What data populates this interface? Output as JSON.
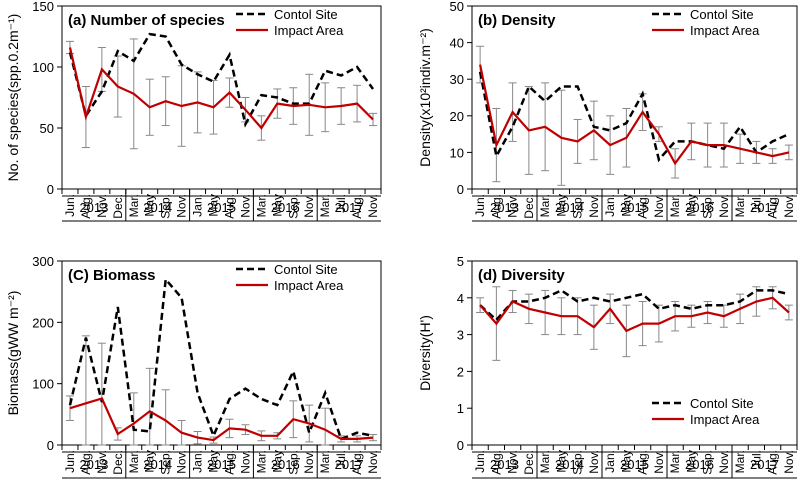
{
  "x_categories": [
    "Jun.",
    "Aug.",
    "Nov.",
    "Dec.",
    "Mar.",
    "May",
    "Sep.",
    "Nov.",
    "Jan.",
    "May",
    "Aug.",
    "Nov.",
    "Mar.",
    "May",
    "Sep.",
    "Nov.",
    "Mar.",
    "Jul.",
    "Aug.",
    "Nov."
  ],
  "x_years": [
    {
      "label": "2013",
      "start": 0,
      "end": 3
    },
    {
      "label": "2014",
      "start": 4,
      "end": 7
    },
    {
      "label": "2015",
      "start": 8,
      "end": 11
    },
    {
      "label": "2016",
      "start": 12,
      "end": 15
    },
    {
      "label": "2017",
      "start": 16,
      "end": 19
    }
  ],
  "colors": {
    "control": "#000000",
    "impact": "#c00000",
    "errorbar": "#888888"
  },
  "chart_data": [
    {
      "id": "species",
      "type": "line",
      "title": "(a)  Number of species",
      "ylabel": "No. of species(spp.0.2m⁻¹)",
      "ylim": [
        0,
        150
      ],
      "yticks": [
        0,
        50,
        100,
        150
      ],
      "legend": [
        "Contol Site",
        "Impact Area"
      ],
      "legend_position": "top-right",
      "series": [
        {
          "name": "Contol Site",
          "style": "dashed",
          "values": [
            112,
            60,
            80,
            113,
            105,
            127,
            125,
            102,
            94,
            88,
            110,
            53,
            77,
            75,
            70,
            70,
            97,
            93,
            100,
            82
          ]
        },
        {
          "name": "Impact Area",
          "style": "solid",
          "values": [
            116,
            59,
            98,
            84,
            78,
            67,
            72,
            68,
            71,
            67,
            79,
            65,
            50,
            70,
            68,
            69,
            67,
            68,
            70,
            57
          ],
          "errors": [
            5,
            25,
            18,
            25,
            45,
            23,
            20,
            33,
            25,
            22,
            12,
            10,
            10,
            12,
            15,
            25,
            20,
            15,
            15,
            5
          ]
        }
      ]
    },
    {
      "id": "density",
      "type": "line",
      "title": "(b)  Density",
      "ylabel": "Density(x10²indiv.m⁻²)",
      "ylim": [
        0,
        50
      ],
      "yticks": [
        0,
        10,
        20,
        30,
        40,
        50
      ],
      "legend": [
        "Contol Site",
        "Impact Area"
      ],
      "legend_position": "top-right",
      "series": [
        {
          "name": "Contol Site",
          "style": "dashed",
          "values": [
            32,
            9,
            17,
            28,
            24,
            28,
            28,
            17,
            16,
            18,
            26,
            8,
            13,
            13,
            12,
            11,
            17,
            10,
            13,
            15
          ]
        },
        {
          "name": "Impact Area",
          "style": "solid",
          "values": [
            34,
            12,
            21,
            16,
            17,
            14,
            13,
            16,
            12,
            14,
            21,
            15,
            7,
            13,
            12,
            12,
            11,
            10,
            9,
            10
          ],
          "errors": [
            5,
            10,
            8,
            12,
            12,
            13,
            6,
            8,
            8,
            8,
            5,
            2,
            4,
            5,
            6,
            6,
            4,
            3,
            2,
            2
          ]
        }
      ]
    },
    {
      "id": "biomass",
      "type": "line",
      "title": "(C)  Biomass",
      "ylabel": "Biomass(gWW m⁻²)",
      "ylim": [
        0,
        300
      ],
      "yticks": [
        0,
        100,
        200,
        300
      ],
      "legend": [
        "Contol Site",
        "Impact Area"
      ],
      "legend_position": "top-right",
      "series": [
        {
          "name": "Contol Site",
          "style": "dashed",
          "values": [
            65,
            175,
            70,
            225,
            25,
            22,
            270,
            240,
            85,
            15,
            75,
            92,
            75,
            65,
            120,
            20,
            85,
            10,
            20,
            15
          ]
        },
        {
          "name": "Impact Area",
          "style": "solid",
          "values": [
            60,
            68,
            76,
            18,
            35,
            55,
            40,
            20,
            12,
            8,
            27,
            25,
            15,
            15,
            42,
            35,
            25,
            10,
            10,
            12
          ],
          "errors": [
            20,
            110,
            90,
            10,
            50,
            70,
            50,
            20,
            10,
            5,
            15,
            8,
            8,
            5,
            30,
            30,
            35,
            5,
            5,
            5
          ]
        }
      ]
    },
    {
      "id": "diversity",
      "type": "line",
      "title": "(d)  Diversity",
      "ylabel": "Diversity(H')",
      "ylim": [
        0,
        5
      ],
      "yticks": [
        0,
        1,
        2,
        3,
        4,
        5
      ],
      "legend": [
        "Contol Site",
        "Impact Area"
      ],
      "legend_position": "bottom-right",
      "series": [
        {
          "name": "Contol Site",
          "style": "dashed",
          "values": [
            3.8,
            3.4,
            3.9,
            3.9,
            4.0,
            4.2,
            3.9,
            4.0,
            3.9,
            4.0,
            4.1,
            3.7,
            3.8,
            3.7,
            3.8,
            3.8,
            3.9,
            4.2,
            4.2,
            4.1
          ]
        },
        {
          "name": "Impact Area",
          "style": "solid",
          "values": [
            3.8,
            3.3,
            3.9,
            3.7,
            3.6,
            3.5,
            3.5,
            3.2,
            3.7,
            3.1,
            3.3,
            3.3,
            3.5,
            3.5,
            3.6,
            3.5,
            3.7,
            3.9,
            4.0,
            3.6
          ],
          "errors": [
            0.2,
            1.0,
            0.3,
            0.4,
            0.6,
            0.5,
            0.5,
            0.6,
            0.4,
            0.7,
            0.6,
            0.5,
            0.4,
            0.3,
            0.3,
            0.3,
            0.4,
            0.4,
            0.3,
            0.2
          ]
        }
      ]
    }
  ]
}
